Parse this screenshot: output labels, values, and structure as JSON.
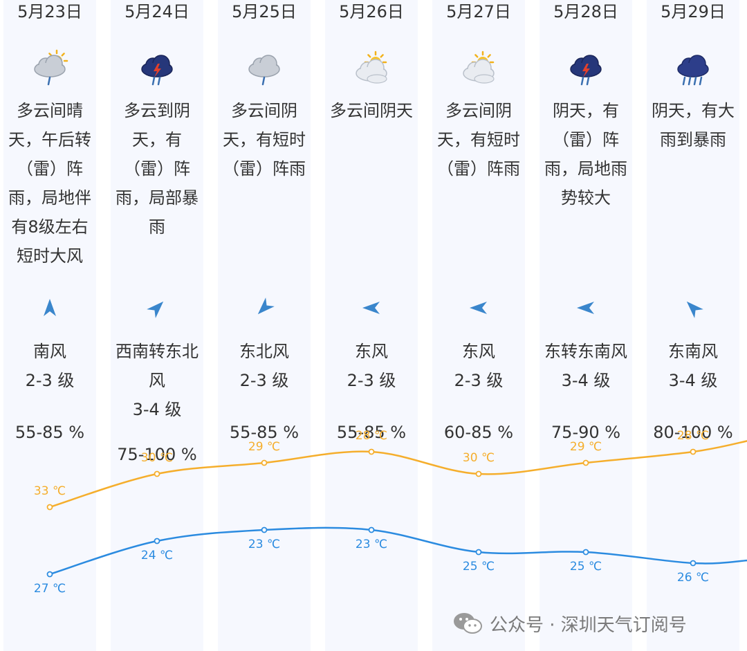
{
  "days": [
    {
      "date": "5月23日",
      "icon": "cloudy-sun-rain-icon",
      "desc_lines": [
        "多云间晴",
        "天，午后转",
        "（雷）阵",
        "雨，局地伴",
        "有8级左右",
        "短时大风"
      ],
      "wind_dir_deg": 0,
      "wind_lines": [
        "南风",
        "2-3 级"
      ],
      "humidity": "55-85 %",
      "high": 33,
      "low": 27,
      "high_label": "33 ℃",
      "low_label": "27 ℃"
    },
    {
      "date": "5月24日",
      "icon": "thunderstorm-icon",
      "desc_lines": [
        "多云到阴",
        "天，有",
        "（雷）阵",
        "雨，局部暴",
        "雨"
      ],
      "wind_dir_deg": 45,
      "wind_lines": [
        "西南转东北",
        "风",
        "3-4 级"
      ],
      "humidity": "75-100 %",
      "high": 30,
      "low": 24,
      "high_label": "30 ℃",
      "low_label": "24 ℃"
    },
    {
      "date": "5月25日",
      "icon": "cloud-rain-icon",
      "desc_lines": [
        "多云间阴",
        "天，有短时",
        "（雷）阵雨"
      ],
      "wind_dir_deg": 225,
      "wind_lines": [
        "东北风",
        "2-3 级"
      ],
      "humidity": "55-85 %",
      "high": 29,
      "low": 23,
      "high_label": "29 ℃",
      "low_label": "23 ℃"
    },
    {
      "date": "5月26日",
      "icon": "partly-cloudy-icon",
      "desc_lines": [
        "多云间阴天"
      ],
      "wind_dir_deg": 270,
      "wind_lines": [
        "东风",
        "2-3 级"
      ],
      "humidity": "55-85 %",
      "high": 28,
      "low": 23,
      "high_label": "28 ℃",
      "low_label": "23 ℃"
    },
    {
      "date": "5月27日",
      "icon": "partly-cloudy-icon",
      "desc_lines": [
        "多云间阴",
        "天，有短时",
        "（雷）阵雨"
      ],
      "wind_dir_deg": 270,
      "wind_lines": [
        "东风",
        "2-3 级"
      ],
      "humidity": "60-85 %",
      "high": 30,
      "low": 25,
      "high_label": "30 ℃",
      "low_label": "25 ℃"
    },
    {
      "date": "5月28日",
      "icon": "thunderstorm-icon",
      "desc_lines": [
        "阴天，有",
        "（雷）阵",
        "雨，局地雨",
        "势较大"
      ],
      "wind_dir_deg": 270,
      "wind_lines": [
        "东转东南风",
        "3-4 级"
      ],
      "humidity": "75-90 %",
      "high": 29,
      "low": 25,
      "high_label": "29 ℃",
      "low_label": "25 ℃"
    },
    {
      "date": "5月29日",
      "icon": "heavy-rain-icon",
      "desc_lines": [
        "阴天，有大",
        "雨到暴雨"
      ],
      "wind_dir_deg": 315,
      "wind_lines": [
        "东南风",
        "3-4 级"
      ],
      "humidity": "80-100 %",
      "high": 28,
      "low": 26,
      "high_label": "28 ℃",
      "low_label": "26 ℃"
    }
  ],
  "watermark": "公众号 · 深圳天气订阅号",
  "colors": {
    "high": "#f5ae2c",
    "low": "#2b8be0",
    "column": "#f6f8fe",
    "arrow": "#3a86cc"
  }
}
